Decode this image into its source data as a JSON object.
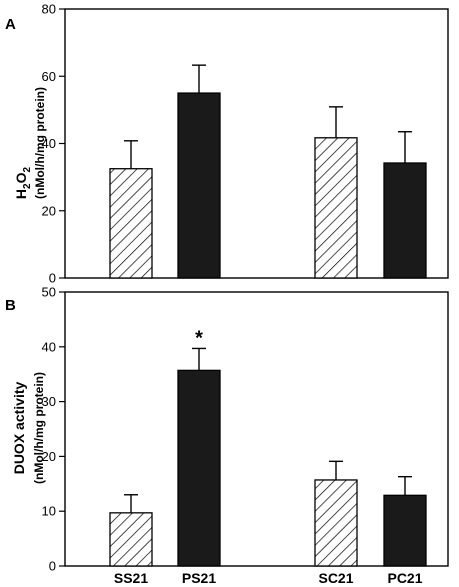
{
  "chart_data": [
    {
      "panel": "A",
      "type": "bar",
      "categories": [
        "SS21",
        "PS21",
        "SC21",
        "PC21"
      ],
      "series": [
        {
          "values": [
            32.5,
            55.0,
            41.7,
            34.2
          ],
          "errors": [
            8.3,
            8.3,
            9.2,
            9.3
          ],
          "fills": [
            "hatched",
            "solid",
            "hatched",
            "solid"
          ]
        }
      ],
      "ylabel": "H2O2",
      "ylabel_main": "H",
      "ylabel_sub1": "2",
      "ylabel_mid": "O",
      "ylabel_sub2": "2",
      "ylabel_unit": "(nMol/h/mg protein)",
      "ylim": [
        0,
        80
      ],
      "yticks": [
        "0",
        "20",
        "40",
        "60",
        "80"
      ],
      "annotations": []
    },
    {
      "panel": "B",
      "type": "bar",
      "categories": [
        "SS21",
        "PS21",
        "SC21",
        "PC21"
      ],
      "series": [
        {
          "values": [
            9.7,
            35.7,
            15.7,
            12.9
          ],
          "errors": [
            3.3,
            4.0,
            3.4,
            3.4
          ],
          "fills": [
            "hatched",
            "solid",
            "hatched",
            "solid"
          ]
        }
      ],
      "ylabel": "DUOX activity",
      "ylabel_unit": "(nMol/h/mg protein)",
      "ylim": [
        0,
        50
      ],
      "yticks": [
        "0",
        "10",
        "20",
        "30",
        "40",
        "50"
      ],
      "annotations": [
        {
          "category": "PS21",
          "text": "*"
        }
      ]
    }
  ],
  "colors": {
    "solid_bar": "#1a1a1a",
    "hatch": "#000000",
    "axis": "#000000"
  }
}
